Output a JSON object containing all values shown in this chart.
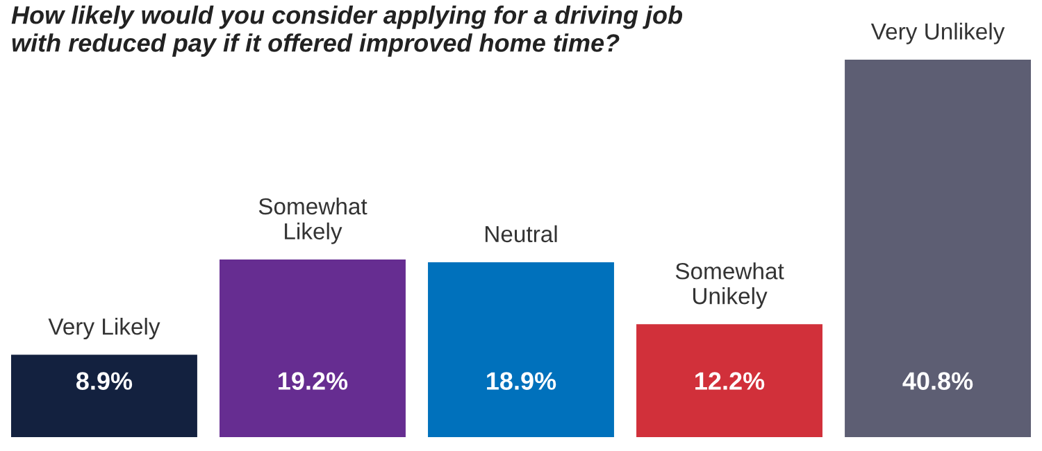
{
  "chart_data": {
    "type": "bar",
    "title": "How likely would you consider applying for a driving job\nwith reduced pay if it offered improved home time?",
    "categories": [
      "Very Likely",
      "Somewhat\nLikely",
      "Neutral",
      "Somewhat\nUnikely",
      "Very Unlikely"
    ],
    "values": [
      8.9,
      19.2,
      18.9,
      12.2,
      40.8
    ],
    "colors": [
      "#13213f",
      "#662d91",
      "#0071bc",
      "#d1303a",
      "#5d5e73"
    ],
    "value_labels": [
      "8.9%",
      "19.2%",
      "18.9%",
      "12.2%",
      "40.8%"
    ]
  }
}
